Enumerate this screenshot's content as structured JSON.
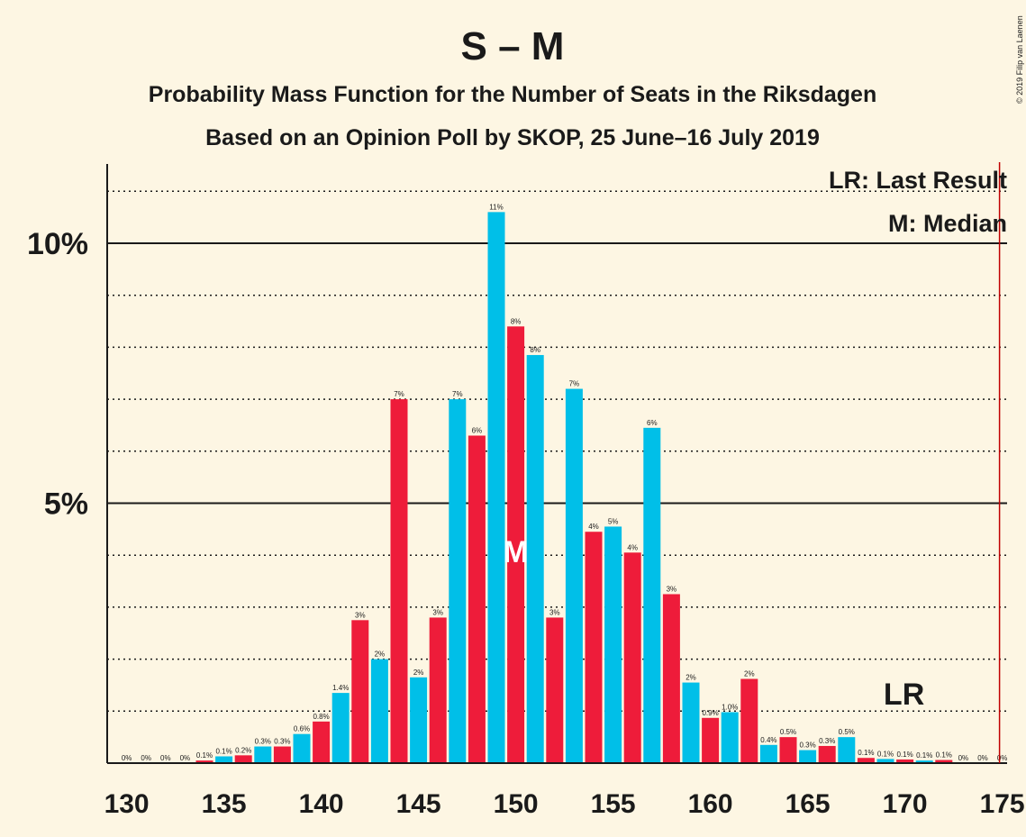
{
  "chart_data": {
    "type": "bar",
    "title": "S – M",
    "subtitle": "Probability Mass Function for the Number of Seats in the Riksdagen",
    "subtitle2": "Based on an Opinion Poll by SKOP, 25 June–16 July 2019",
    "copyright": "© 2019 Filip van Laenen",
    "colors": {
      "bar_a": "#00bfe8",
      "bar_b": "#ee1c3a",
      "lr_line": "#c00000",
      "axis": "#1a1a1a",
      "background": "#fdf6e3"
    },
    "x_ticks": [
      "130",
      "135",
      "140",
      "145",
      "150",
      "155",
      "160",
      "165",
      "170",
      "175"
    ],
    "y_ticks": [
      {
        "label": "5%",
        "value": 5
      },
      {
        "label": "10%",
        "value": 10
      }
    ],
    "ylim": [
      0,
      11.5
    ],
    "grid": "dotted minor lines every 1%, solid at 5% and 10%",
    "legend": {
      "lr": "LR: Last Result",
      "median": "M: Median",
      "placement": "top-right"
    },
    "last_result": {
      "seat": 175,
      "label": "LR",
      "label_seat": 170
    },
    "median": {
      "seat": 150,
      "label": "M"
    },
    "x": [
      130,
      131,
      132,
      133,
      134,
      135,
      136,
      137,
      138,
      139,
      140,
      141,
      142,
      143,
      144,
      145,
      146,
      147,
      148,
      149,
      150,
      151,
      152,
      153,
      154,
      155,
      156,
      157,
      158,
      159,
      160,
      161,
      162,
      163,
      164,
      165,
      166,
      167,
      168,
      169,
      170,
      171,
      172,
      173,
      174,
      175
    ],
    "values": [
      0,
      0,
      0,
      0,
      0.05,
      0.13,
      0.15,
      0.32,
      0.32,
      0.56,
      0.8,
      1.35,
      2.75,
      2.0,
      7.0,
      1.65,
      2.8,
      7.0,
      6.3,
      10.6,
      8.4,
      7.85,
      2.8,
      7.2,
      4.45,
      4.55,
      4.05,
      6.45,
      3.25,
      1.55,
      0.87,
      0.98,
      1.62,
      0.35,
      0.5,
      0.25,
      0.33,
      0.5,
      0.1,
      0.08,
      0.07,
      0.05,
      0.06,
      0,
      0,
      0
    ],
    "labels": [
      "0%",
      "0%",
      "0%",
      "0%",
      "0.1%",
      "0.1%",
      "0.2%",
      "0.3%",
      "0.3%",
      "0.6%",
      "0.8%",
      "1.4%",
      "3%",
      "2%",
      "7%",
      "2%",
      "3%",
      "7%",
      "6%",
      "11%",
      "8%",
      "8%",
      "3%",
      "7%",
      "4%",
      "5%",
      "4%",
      "6%",
      "3%",
      "2%",
      "0.9%",
      "1.0%",
      "2%",
      "0.4%",
      "0.5%",
      "0.3%",
      "0.3%",
      "0.5%",
      "0.1%",
      "0.1%",
      "0.1%",
      "0.1%",
      "0.1%",
      "0%",
      "0%",
      "0%"
    ]
  }
}
